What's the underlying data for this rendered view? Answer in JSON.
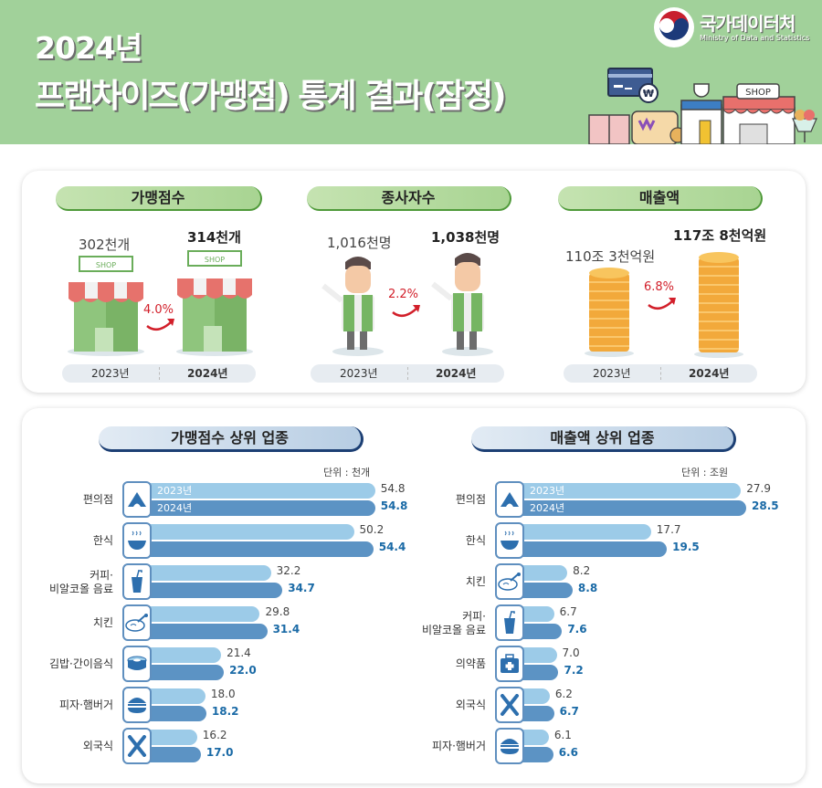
{
  "header": {
    "title_line1": "2024년",
    "title_line2": "프랜차이즈(가맹점) 통계 결과(잠정)",
    "agency_ko": "국가데이터처",
    "agency_en": "Ministry of Data and Statistics",
    "deco_shop_sign": "SHOP",
    "deco_currency": "₩",
    "bg_color": "#a1d19a"
  },
  "summary": {
    "years": [
      "2023년",
      "2024년"
    ],
    "cards": [
      {
        "title": "가맹점수",
        "old": "302천개",
        "new": "314천개",
        "change": "4.0%",
        "icon": "shop-icon",
        "shop_sign": "SHOP"
      },
      {
        "title": "종사자수",
        "old": "1,016천명",
        "new": "1,038천명",
        "change": "2.2%",
        "icon": "worker-icon"
      },
      {
        "title": "매출액",
        "old": "110조 3천억원",
        "new": "117조 8천억원",
        "change": "6.8%",
        "icon": "coin-stack-icon"
      }
    ]
  },
  "chart_data": [
    {
      "type": "bar",
      "orientation": "horizontal",
      "title": "가맹점수 상위 업종",
      "unit": "단위 : 천개",
      "categories": [
        "편의점",
        "한식",
        "커피·\n비알코올 음료",
        "치킨",
        "김밥·간이음식",
        "피자·햄버거",
        "외국식"
      ],
      "icons": [
        "convenience-store-icon",
        "bowl-icon",
        "drink-cup-icon",
        "chicken-icon",
        "gimbap-icon",
        "burger-icon",
        "fork-knife-icon"
      ],
      "series": [
        {
          "name": "2023년",
          "color": "#9ccbe8",
          "values": [
            54.8,
            50.2,
            32.2,
            29.8,
            21.4,
            18.0,
            16.2
          ],
          "labels": [
            "54.8",
            "50.2",
            "32.2",
            "29.8",
            "21.4",
            "18.0",
            "16.2"
          ]
        },
        {
          "name": "2024년",
          "color": "#5c93c4",
          "values": [
            54.8,
            54.4,
            34.7,
            31.4,
            22.0,
            18.2,
            17.0
          ],
          "labels": [
            "54.8",
            "54.4",
            "34.7",
            "31.4",
            "22.0",
            "18.2",
            "17.0"
          ]
        }
      ]
    },
    {
      "type": "bar",
      "orientation": "horizontal",
      "title": "매출액 상위 업종",
      "unit": "단위 : 조원",
      "categories": [
        "편의점",
        "한식",
        "치킨",
        "커피·\n비알코올 음료",
        "의약품",
        "외국식",
        "피자·햄버거"
      ],
      "icons": [
        "convenience-store-icon",
        "bowl-icon",
        "chicken-icon",
        "drink-cup-icon",
        "medical-kit-icon",
        "fork-knife-icon",
        "burger-icon"
      ],
      "series": [
        {
          "name": "2023년",
          "color": "#9ccbe8",
          "values": [
            27.9,
            17.7,
            8.2,
            6.7,
            7.0,
            6.2,
            6.1
          ],
          "labels": [
            "27.9",
            "17.7",
            "8.2",
            "6.7",
            "7.0",
            "6.2",
            "6.1"
          ]
        },
        {
          "name": "2024년",
          "color": "#5c93c4",
          "values": [
            28.5,
            19.5,
            8.8,
            7.6,
            7.2,
            6.7,
            6.6
          ],
          "labels": [
            "28.5",
            "19.5",
            "8.8",
            "7.6",
            "7.2",
            "6.7",
            "6.6"
          ]
        }
      ]
    }
  ]
}
